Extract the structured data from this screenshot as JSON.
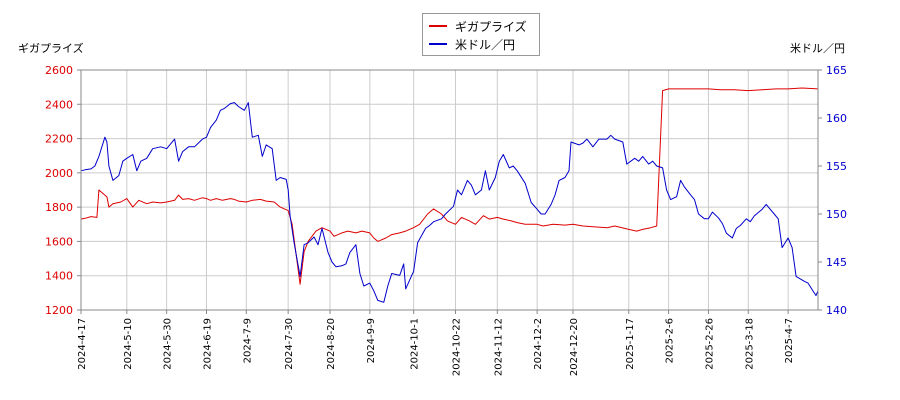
{
  "chart_data": {
    "type": "line",
    "x_ticks": [
      "2024-4-17",
      "2024-5-10",
      "2024-5-30",
      "2024-6-19",
      "2024-7-9",
      "2024-7-30",
      "2024-8-20",
      "2024-9-9",
      "2024-10-1",
      "2024-10-22",
      "2024-11-12",
      "2024-12-2",
      "2024-12-20",
      "2025-1-17",
      "2025-2-6",
      "2025-2-26",
      "2025-3-18",
      "2025-4-7"
    ],
    "x_range": [
      "2024-04-17",
      "2025-04-22"
    ],
    "y_left": {
      "label": "ギガプライズ",
      "min": 1200,
      "max": 2600,
      "ticks": [
        1200,
        1400,
        1600,
        1800,
        2000,
        2200,
        2400,
        2600
      ],
      "color": "#dd0000"
    },
    "y_right": {
      "label": "米ドル／円",
      "min": 140,
      "max": 165,
      "ticks": [
        140,
        145,
        150,
        155,
        160,
        165
      ],
      "color": "#0000cc"
    },
    "grid": true,
    "legend_position": "top-center",
    "series": [
      {
        "name": "ギガプライズ",
        "axis": "left",
        "color": "#dd0000",
        "points": [
          [
            "2024-04-17",
            1730
          ],
          [
            "2024-04-19",
            1735
          ],
          [
            "2024-04-22",
            1745
          ],
          [
            "2024-04-25",
            1740
          ],
          [
            "2024-04-26",
            1900
          ],
          [
            "2024-04-30",
            1860
          ],
          [
            "2024-05-01",
            1800
          ],
          [
            "2024-05-03",
            1820
          ],
          [
            "2024-05-07",
            1830
          ],
          [
            "2024-05-10",
            1850
          ],
          [
            "2024-05-13",
            1800
          ],
          [
            "2024-05-16",
            1840
          ],
          [
            "2024-05-20",
            1820
          ],
          [
            "2024-05-23",
            1830
          ],
          [
            "2024-05-27",
            1825
          ],
          [
            "2024-05-30",
            1830
          ],
          [
            "2024-06-03",
            1840
          ],
          [
            "2024-06-05",
            1870
          ],
          [
            "2024-06-07",
            1845
          ],
          [
            "2024-06-10",
            1850
          ],
          [
            "2024-06-13",
            1840
          ],
          [
            "2024-06-17",
            1855
          ],
          [
            "2024-06-19",
            1850
          ],
          [
            "2024-06-21",
            1840
          ],
          [
            "2024-06-24",
            1850
          ],
          [
            "2024-06-27",
            1840
          ],
          [
            "2024-07-01",
            1850
          ],
          [
            "2024-07-03",
            1845
          ],
          [
            "2024-07-05",
            1835
          ],
          [
            "2024-07-09",
            1830
          ],
          [
            "2024-07-12",
            1840
          ],
          [
            "2024-07-16",
            1845
          ],
          [
            "2024-07-19",
            1835
          ],
          [
            "2024-07-23",
            1830
          ],
          [
            "2024-07-26",
            1800
          ],
          [
            "2024-07-30",
            1780
          ],
          [
            "2024-08-01",
            1700
          ],
          [
            "2024-08-05",
            1350
          ],
          [
            "2024-08-07",
            1540
          ],
          [
            "2024-08-09",
            1600
          ],
          [
            "2024-08-13",
            1660
          ],
          [
            "2024-08-16",
            1680
          ],
          [
            "2024-08-20",
            1660
          ],
          [
            "2024-08-22",
            1630
          ],
          [
            "2024-08-26",
            1650
          ],
          [
            "2024-08-29",
            1660
          ],
          [
            "2024-09-02",
            1650
          ],
          [
            "2024-09-05",
            1660
          ],
          [
            "2024-09-09",
            1650
          ],
          [
            "2024-09-11",
            1620
          ],
          [
            "2024-09-13",
            1600
          ],
          [
            "2024-09-17",
            1620
          ],
          [
            "2024-09-20",
            1640
          ],
          [
            "2024-09-24",
            1650
          ],
          [
            "2024-09-27",
            1660
          ],
          [
            "2024-10-01",
            1680
          ],
          [
            "2024-10-04",
            1700
          ],
          [
            "2024-10-08",
            1760
          ],
          [
            "2024-10-11",
            1790
          ],
          [
            "2024-10-15",
            1760
          ],
          [
            "2024-10-18",
            1720
          ],
          [
            "2024-10-22",
            1700
          ],
          [
            "2024-10-25",
            1740
          ],
          [
            "2024-10-29",
            1720
          ],
          [
            "2024-11-01",
            1700
          ],
          [
            "2024-11-05",
            1750
          ],
          [
            "2024-11-08",
            1730
          ],
          [
            "2024-11-12",
            1740
          ],
          [
            "2024-11-15",
            1730
          ],
          [
            "2024-11-19",
            1720
          ],
          [
            "2024-11-22",
            1710
          ],
          [
            "2024-11-26",
            1700
          ],
          [
            "2024-12-02",
            1700
          ],
          [
            "2024-12-05",
            1690
          ],
          [
            "2024-12-10",
            1700
          ],
          [
            "2024-12-16",
            1695
          ],
          [
            "2024-12-20",
            1700
          ],
          [
            "2024-12-25",
            1690
          ],
          [
            "2025-01-06",
            1680
          ],
          [
            "2025-01-10",
            1690
          ],
          [
            "2025-01-17",
            1670
          ],
          [
            "2025-01-21",
            1660
          ],
          [
            "2025-01-24",
            1670
          ],
          [
            "2025-01-28",
            1680
          ],
          [
            "2025-01-31",
            1690
          ],
          [
            "2025-02-03",
            2480
          ],
          [
            "2025-02-06",
            2490
          ],
          [
            "2025-02-12",
            2490
          ],
          [
            "2025-02-19",
            2490
          ],
          [
            "2025-02-26",
            2490
          ],
          [
            "2025-03-04",
            2485
          ],
          [
            "2025-03-11",
            2485
          ],
          [
            "2025-03-18",
            2480
          ],
          [
            "2025-03-25",
            2485
          ],
          [
            "2025-04-01",
            2490
          ],
          [
            "2025-04-07",
            2490
          ],
          [
            "2025-04-14",
            2495
          ],
          [
            "2025-04-22",
            2490
          ]
        ]
      },
      {
        "name": "米ドル／円",
        "axis": "right",
        "color": "#0000cc",
        "points": [
          [
            "2024-04-17",
            154.5
          ],
          [
            "2024-04-19",
            154.6
          ],
          [
            "2024-04-22",
            154.7
          ],
          [
            "2024-04-24",
            155.0
          ],
          [
            "2024-04-26",
            156.0
          ],
          [
            "2024-04-29",
            158.0
          ],
          [
            "2024-04-30",
            157.5
          ],
          [
            "2024-05-01",
            155.0
          ],
          [
            "2024-05-03",
            153.5
          ],
          [
            "2024-05-06",
            154.0
          ],
          [
            "2024-05-08",
            155.5
          ],
          [
            "2024-05-10",
            155.8
          ],
          [
            "2024-05-13",
            156.2
          ],
          [
            "2024-05-15",
            154.5
          ],
          [
            "2024-05-17",
            155.5
          ],
          [
            "2024-05-20",
            155.8
          ],
          [
            "2024-05-23",
            156.8
          ],
          [
            "2024-05-27",
            157.0
          ],
          [
            "2024-05-30",
            156.8
          ],
          [
            "2024-06-03",
            157.8
          ],
          [
            "2024-06-05",
            155.5
          ],
          [
            "2024-06-07",
            156.5
          ],
          [
            "2024-06-10",
            157.0
          ],
          [
            "2024-06-13",
            157.0
          ],
          [
            "2024-06-17",
            157.8
          ],
          [
            "2024-06-19",
            158.0
          ],
          [
            "2024-06-21",
            159.0
          ],
          [
            "2024-06-24",
            159.8
          ],
          [
            "2024-06-26",
            160.8
          ],
          [
            "2024-06-28",
            161.0
          ],
          [
            "2024-07-01",
            161.5
          ],
          [
            "2024-07-03",
            161.6
          ],
          [
            "2024-07-05",
            161.2
          ],
          [
            "2024-07-08",
            160.8
          ],
          [
            "2024-07-10",
            161.6
          ],
          [
            "2024-07-12",
            158.0
          ],
          [
            "2024-07-15",
            158.2
          ],
          [
            "2024-07-17",
            156.0
          ],
          [
            "2024-07-19",
            157.2
          ],
          [
            "2024-07-22",
            156.8
          ],
          [
            "2024-07-24",
            153.5
          ],
          [
            "2024-07-26",
            153.8
          ],
          [
            "2024-07-29",
            153.6
          ],
          [
            "2024-07-30",
            152.5
          ],
          [
            "2024-07-31",
            149.8
          ],
          [
            "2024-08-02",
            147.0
          ],
          [
            "2024-08-05",
            143.5
          ],
          [
            "2024-08-07",
            146.8
          ],
          [
            "2024-08-09",
            147.0
          ],
          [
            "2024-08-12",
            147.6
          ],
          [
            "2024-08-14",
            146.8
          ],
          [
            "2024-08-16",
            148.5
          ],
          [
            "2024-08-19",
            146.0
          ],
          [
            "2024-08-21",
            145.0
          ],
          [
            "2024-08-23",
            144.5
          ],
          [
            "2024-08-26",
            144.6
          ],
          [
            "2024-08-28",
            144.8
          ],
          [
            "2024-08-30",
            146.0
          ],
          [
            "2024-09-02",
            146.8
          ],
          [
            "2024-09-04",
            143.8
          ],
          [
            "2024-09-06",
            142.5
          ],
          [
            "2024-09-09",
            142.8
          ],
          [
            "2024-09-11",
            142.0
          ],
          [
            "2024-09-13",
            141.0
          ],
          [
            "2024-09-16",
            140.8
          ],
          [
            "2024-09-18",
            142.5
          ],
          [
            "2024-09-20",
            143.8
          ],
          [
            "2024-09-24",
            143.6
          ],
          [
            "2024-09-26",
            144.8
          ],
          [
            "2024-09-27",
            142.2
          ],
          [
            "2024-09-30",
            143.6
          ],
          [
            "2024-10-01",
            144.0
          ],
          [
            "2024-10-03",
            147.0
          ],
          [
            "2024-10-07",
            148.5
          ],
          [
            "2024-10-09",
            148.8
          ],
          [
            "2024-10-11",
            149.2
          ],
          [
            "2024-10-15",
            149.5
          ],
          [
            "2024-10-17",
            150.0
          ],
          [
            "2024-10-21",
            150.8
          ],
          [
            "2024-10-23",
            152.5
          ],
          [
            "2024-10-25",
            152.0
          ],
          [
            "2024-10-28",
            153.5
          ],
          [
            "2024-10-30",
            153.0
          ],
          [
            "2024-11-01",
            152.0
          ],
          [
            "2024-11-04",
            152.5
          ],
          [
            "2024-11-06",
            154.5
          ],
          [
            "2024-11-08",
            152.5
          ],
          [
            "2024-11-11",
            153.8
          ],
          [
            "2024-11-13",
            155.5
          ],
          [
            "2024-11-15",
            156.2
          ],
          [
            "2024-11-18",
            154.8
          ],
          [
            "2024-11-20",
            155.0
          ],
          [
            "2024-11-22",
            154.5
          ],
          [
            "2024-11-26",
            153.2
          ],
          [
            "2024-11-29",
            151.2
          ],
          [
            "2024-12-02",
            150.5
          ],
          [
            "2024-12-04",
            150.0
          ],
          [
            "2024-12-06",
            150.0
          ],
          [
            "2024-12-09",
            151.0
          ],
          [
            "2024-12-11",
            152.0
          ],
          [
            "2024-12-13",
            153.5
          ],
          [
            "2024-12-16",
            153.8
          ],
          [
            "2024-12-18",
            154.5
          ],
          [
            "2024-12-19",
            157.5
          ],
          [
            "2024-12-23",
            157.2
          ],
          [
            "2024-12-25",
            157.4
          ],
          [
            "2024-12-27",
            157.8
          ],
          [
            "2024-12-30",
            157.0
          ],
          [
            "2025-01-02",
            157.8
          ],
          [
            "2025-01-06",
            157.8
          ],
          [
            "2025-01-08",
            158.2
          ],
          [
            "2025-01-10",
            157.8
          ],
          [
            "2025-01-14",
            157.5
          ],
          [
            "2025-01-16",
            155.2
          ],
          [
            "2025-01-20",
            155.8
          ],
          [
            "2025-01-22",
            155.5
          ],
          [
            "2025-01-24",
            156.0
          ],
          [
            "2025-01-27",
            155.2
          ],
          [
            "2025-01-29",
            155.5
          ],
          [
            "2025-01-31",
            155.0
          ],
          [
            "2025-02-03",
            154.8
          ],
          [
            "2025-02-05",
            152.5
          ],
          [
            "2025-02-07",
            151.5
          ],
          [
            "2025-02-10",
            151.8
          ],
          [
            "2025-02-12",
            153.5
          ],
          [
            "2025-02-14",
            152.8
          ],
          [
            "2025-02-17",
            152.0
          ],
          [
            "2025-02-19",
            151.5
          ],
          [
            "2025-02-21",
            150.0
          ],
          [
            "2025-02-24",
            149.5
          ],
          [
            "2025-02-26",
            149.5
          ],
          [
            "2025-02-28",
            150.2
          ],
          [
            "2025-03-03",
            149.6
          ],
          [
            "2025-03-05",
            149.0
          ],
          [
            "2025-03-07",
            148.0
          ],
          [
            "2025-03-10",
            147.5
          ],
          [
            "2025-03-12",
            148.5
          ],
          [
            "2025-03-14",
            148.8
          ],
          [
            "2025-03-17",
            149.5
          ],
          [
            "2025-03-19",
            149.2
          ],
          [
            "2025-03-21",
            149.8
          ],
          [
            "2025-03-25",
            150.5
          ],
          [
            "2025-03-27",
            151.0
          ],
          [
            "2025-03-31",
            150.0
          ],
          [
            "2025-04-02",
            149.5
          ],
          [
            "2025-04-04",
            146.5
          ],
          [
            "2025-04-07",
            147.5
          ],
          [
            "2025-04-09",
            146.5
          ],
          [
            "2025-04-11",
            143.5
          ],
          [
            "2025-04-15",
            143.0
          ],
          [
            "2025-04-17",
            142.8
          ],
          [
            "2025-04-21",
            141.5
          ],
          [
            "2025-04-22",
            142.0
          ]
        ]
      }
    ]
  }
}
